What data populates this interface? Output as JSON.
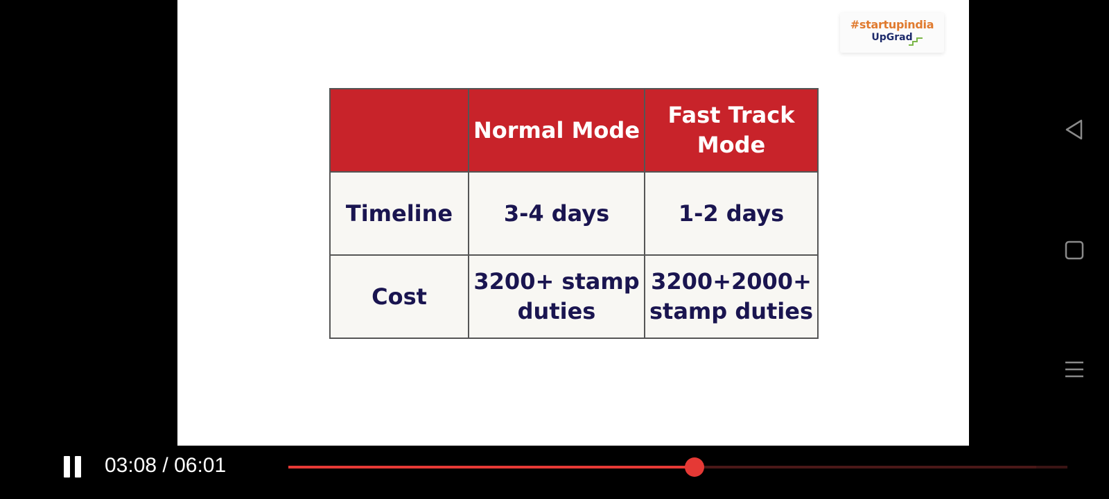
{
  "slide": {
    "logo": {
      "line1": "#startupindia",
      "line2": "UpGrad"
    },
    "table": {
      "header": [
        "",
        "Normal Mode",
        "Fast Track Mode"
      ],
      "rows": [
        [
          "Timeline",
          "3-4 days",
          "1-2 days"
        ],
        [
          "Cost",
          "3200+ stamp duties",
          "3200+2000+ stamp duties"
        ]
      ]
    }
  },
  "player": {
    "state": "playing",
    "current_time": "03:08",
    "separator": " / ",
    "duration": "06:01",
    "progress_fraction": 0.521,
    "buffered_fraction": 0.96,
    "colors": {
      "played": "#e53935",
      "track": "#3a1414"
    }
  },
  "system_nav": {
    "icons": [
      "back-icon",
      "home-icon",
      "menu-icon"
    ]
  },
  "colors": {
    "header_bg": "#c8232a",
    "cell_bg": "#f8f7f3",
    "cell_text": "#1a1550",
    "logo_orange": "#e07a2e",
    "logo_navy": "#1d2a6b"
  }
}
